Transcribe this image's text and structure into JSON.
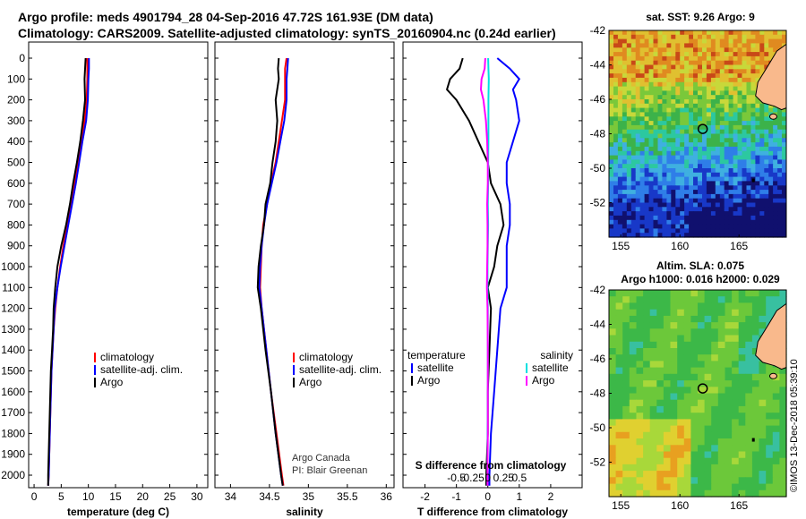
{
  "header": {
    "title_line1": "Argo profile: meds 4901794_28 04-Sep-2016 47.72S 161.93E (DM data)",
    "title_line2": "Climatology: CARS2009. Satellite-adjusted climatology: synTS_20160904.nc (0.24d earlier)"
  },
  "colors": {
    "climatology": "#ff0000",
    "satellite": "#0000ff",
    "argo": "#000000",
    "salinity_diff": "#00e0e0",
    "temperature_diff_clim": "#ff00ff",
    "coast": "#f9b98c"
  },
  "chart_data": [
    {
      "type": "line",
      "id": "temperature",
      "xlabel": "temperature (deg C)",
      "xlim": [
        -1,
        32
      ],
      "xticks": [
        0,
        5,
        10,
        15,
        20,
        25,
        30
      ],
      "ylim": [
        2060,
        0
      ],
      "yticks": [
        0,
        100,
        200,
        300,
        400,
        500,
        600,
        700,
        800,
        900,
        1000,
        1100,
        1200,
        1300,
        1400,
        1500,
        1600,
        1700,
        1800,
        1900,
        2000
      ],
      "legend": [
        "climatology",
        "satellite-adj. clim.",
        "Argo"
      ],
      "series": [
        {
          "name": "climatology",
          "color": "#ff0000",
          "depth": [
            0,
            50,
            100,
            200,
            300,
            400,
            500,
            600,
            700,
            800,
            900,
            1000,
            1100,
            1200,
            1300,
            1400,
            1500,
            1700,
            2000,
            2050
          ],
          "values": [
            9.8,
            9.8,
            9.8,
            9.7,
            9.3,
            8.7,
            8.1,
            7.4,
            6.7,
            6.1,
            5.4,
            4.8,
            4.3,
            3.9,
            3.6,
            3.4,
            3.2,
            3.0,
            2.7,
            2.6
          ]
        },
        {
          "name": "satellite-adj. clim.",
          "color": "#0000ff",
          "depth": [
            0,
            50,
            100,
            200,
            300,
            400,
            500,
            600,
            700,
            800,
            900,
            1000,
            1100,
            1200,
            1300,
            1400,
            1500,
            1700,
            2000,
            2050
          ],
          "values": [
            10.1,
            10.1,
            10.0,
            9.9,
            9.6,
            8.9,
            8.3,
            7.7,
            7.0,
            6.3,
            5.6,
            4.9,
            4.3,
            3.8,
            3.6,
            3.4,
            3.2,
            3.0,
            2.7,
            2.6
          ]
        },
        {
          "name": "Argo",
          "color": "#000000",
          "depth": [
            0,
            50,
            100,
            200,
            300,
            400,
            500,
            600,
            700,
            800,
            900,
            1000,
            1100,
            1200,
            1300,
            1400,
            1500,
            1700,
            2000,
            2050
          ],
          "values": [
            9.5,
            9.4,
            9.3,
            9.4,
            9.0,
            8.5,
            7.9,
            7.2,
            6.6,
            5.9,
            5.0,
            4.3,
            3.9,
            3.6,
            3.5,
            3.3,
            3.1,
            2.9,
            2.6,
            2.6
          ]
        }
      ]
    },
    {
      "type": "line",
      "id": "salinity",
      "xlabel": "salinity",
      "xlim": [
        33.8,
        36.1
      ],
      "xticks": [
        34,
        34.5,
        35,
        35.5,
        36
      ],
      "ylim": [
        2060,
        0
      ],
      "legend": [
        "climatology",
        "satellite-adj. clim.",
        "Argo"
      ],
      "annotation": [
        "Argo Canada",
        "PI: Blair Greenan"
      ],
      "series": [
        {
          "name": "climatology",
          "color": "#ff0000",
          "depth": [
            0,
            50,
            100,
            200,
            300,
            400,
            500,
            600,
            700,
            800,
            900,
            1000,
            1100,
            1200,
            1400,
            1600,
            1800,
            2000,
            2050
          ],
          "values": [
            34.72,
            34.7,
            34.7,
            34.7,
            34.66,
            34.62,
            34.58,
            34.52,
            34.47,
            34.42,
            34.4,
            34.39,
            34.38,
            34.4,
            34.46,
            34.52,
            34.59,
            34.66,
            34.68
          ]
        },
        {
          "name": "satellite-adj. clim.",
          "color": "#0000ff",
          "depth": [
            0,
            50,
            100,
            200,
            300,
            400,
            500,
            600,
            700,
            800,
            900,
            1000,
            1100,
            1200,
            1400,
            1600,
            1800,
            2000,
            2050
          ],
          "values": [
            34.74,
            34.73,
            34.72,
            34.72,
            34.69,
            34.64,
            34.59,
            34.53,
            34.47,
            34.43,
            34.4,
            34.38,
            34.37,
            34.4,
            34.46,
            34.52,
            34.58,
            34.65,
            34.67
          ]
        },
        {
          "name": "Argo",
          "color": "#000000",
          "depth": [
            0,
            50,
            100,
            200,
            300,
            400,
            500,
            600,
            700,
            800,
            900,
            1000,
            1100,
            1200,
            1400,
            1600,
            1800,
            2000,
            2050
          ],
          "values": [
            34.62,
            34.61,
            34.62,
            34.58,
            34.6,
            34.58,
            34.54,
            34.51,
            34.45,
            34.43,
            34.39,
            34.36,
            34.35,
            34.39,
            34.45,
            34.52,
            34.58,
            34.65,
            34.67
          ]
        }
      ]
    },
    {
      "type": "line",
      "id": "difference",
      "xlabel": "T difference from climatology",
      "xlabel_top": "S difference from climatology",
      "xlim": [
        -2.7,
        3.0
      ],
      "xticks": [
        -2,
        -1,
        0,
        1,
        2
      ],
      "xticks_top": [
        "-0.5",
        "-0.25",
        "0",
        "0.25",
        "0.5"
      ],
      "ylim": [
        2060,
        0
      ],
      "legend_temperature": {
        "title": "temperature",
        "items": [
          "satellite",
          "Argo"
        ]
      },
      "legend_salinity": {
        "title": "salinity",
        "items": [
          "satellite",
          "Argo"
        ]
      },
      "series": [
        {
          "name": "temperature satellite",
          "color": "#0000ff",
          "depth": [
            0,
            50,
            100,
            150,
            200,
            300,
            400,
            500,
            600,
            700,
            800,
            900,
            1000,
            1100,
            1200,
            1400,
            1600,
            1800,
            2000,
            2050
          ],
          "values": [
            0.3,
            0.7,
            1.0,
            0.8,
            0.9,
            1.0,
            0.8,
            0.6,
            0.6,
            0.7,
            0.7,
            0.6,
            0.6,
            0.6,
            0.4,
            0.3,
            0.2,
            0.1,
            0.05,
            0.05
          ]
        },
        {
          "name": "temperature Argo",
          "color": "#000000",
          "depth": [
            0,
            50,
            100,
            150,
            200,
            300,
            400,
            500,
            600,
            700,
            800,
            900,
            1000,
            1100,
            1200,
            1400,
            1600,
            1800,
            2000,
            2050
          ],
          "values": [
            -0.8,
            -0.9,
            -1.2,
            -1.3,
            -1.0,
            -0.6,
            -0.3,
            0.0,
            0.1,
            0.4,
            0.5,
            0.3,
            0.2,
            0.0,
            0.1,
            0.05,
            0.0,
            0.0,
            -0.05,
            -0.05
          ]
        },
        {
          "name": "salinity satellite",
          "color": "#00e0e0",
          "depth": [
            0,
            50,
            100,
            200,
            300,
            400,
            500,
            600,
            700,
            800,
            900,
            1000,
            1100,
            1200,
            1400,
            1600,
            1800,
            2000,
            2050
          ],
          "values": [
            0.01,
            0.02,
            0.03,
            0.02,
            0.02,
            0.02,
            0.01,
            0.01,
            0.0,
            0.01,
            0.0,
            -0.01,
            -0.01,
            0.0,
            0.0,
            0.0,
            -0.01,
            -0.01,
            -0.01
          ]
        },
        {
          "name": "salinity Argo",
          "color": "#ff00ff",
          "depth": [
            0,
            50,
            100,
            150,
            200,
            300,
            400,
            500,
            600,
            700,
            800,
            900,
            1000,
            1100,
            1200,
            1400,
            1600,
            1800,
            2000,
            2050
          ],
          "values": [
            -0.08,
            -0.1,
            -0.2,
            -0.22,
            -0.14,
            -0.06,
            -0.02,
            0.0,
            0.0,
            -0.02,
            -0.01,
            -0.01,
            -0.02,
            -0.03,
            -0.01,
            0.0,
            0.0,
            0.0,
            -0.01,
            -0.01
          ]
        }
      ]
    },
    {
      "type": "heatmap",
      "id": "sst_map",
      "title": "sat. SST: 9.26 Argo: 9",
      "xlim": [
        154,
        169
      ],
      "ylim": [
        -54,
        -42
      ],
      "xticks": [
        155,
        160,
        165
      ],
      "yticks": [
        -42,
        -44,
        -46,
        -48,
        -50,
        -52
      ],
      "argo_position": {
        "lon": 161.93,
        "lat": -47.72
      }
    },
    {
      "type": "heatmap",
      "id": "sla_map",
      "title_line1": "Altim. SLA: 0.075",
      "title_line2": "Argo h1000: 0.016 h2000: 0.029",
      "xlim": [
        154,
        169
      ],
      "ylim": [
        -54,
        -42
      ],
      "xticks": [
        155,
        160,
        165
      ],
      "yticks": [
        -42,
        -44,
        -46,
        -48,
        -50,
        -52
      ],
      "argo_position": {
        "lon": 161.93,
        "lat": -47.72
      }
    }
  ],
  "footer": {
    "credit": "©IMOS 13-Dec-2018 05:39:10"
  }
}
